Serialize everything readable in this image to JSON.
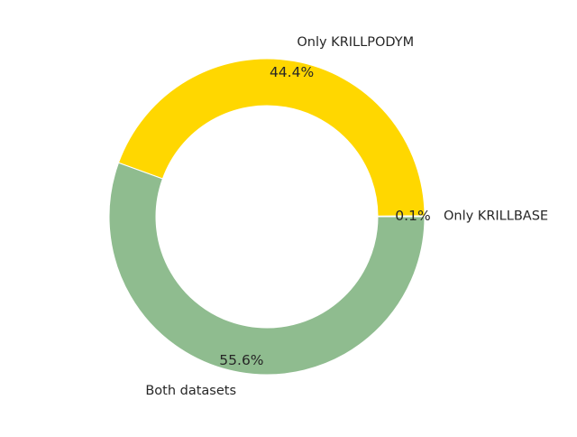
{
  "chart_data": {
    "type": "pie",
    "donut": true,
    "title": "",
    "slices": [
      {
        "label": "Only KRILLBASE",
        "value": 0.1,
        "pct_label": "0.1%",
        "color": "#2E8B57"
      },
      {
        "label": "Only KRILLPODYM",
        "value": 44.4,
        "pct_label": "44.4%",
        "color": "#FFD700"
      },
      {
        "label": "Both datasets",
        "value": 55.6,
        "pct_label": "55.6%",
        "color": "#8FBC8F"
      }
    ],
    "start_angle_deg": 0,
    "direction": "counterclockwise",
    "edge_color": "#ffffff",
    "legend": "none"
  }
}
